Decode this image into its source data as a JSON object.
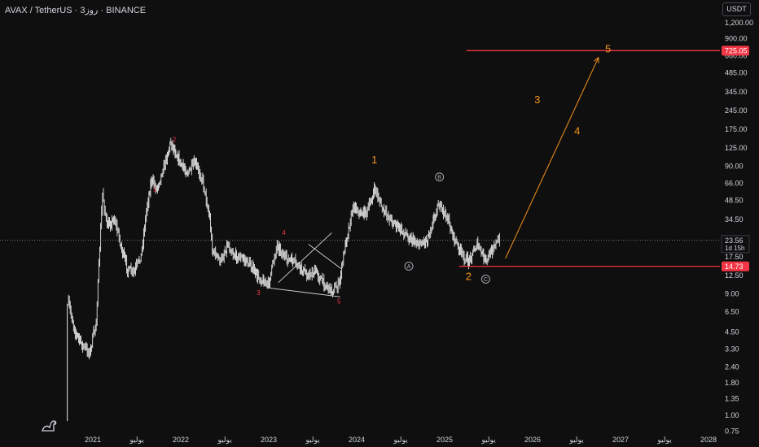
{
  "header": {
    "title": "AVAX / TetherUS · 3روز · BINANCE",
    "currency": "USDT"
  },
  "colors": {
    "background": "#0f0f0f",
    "candles": "#e6e6e6",
    "wave_red": "#f23645",
    "wave_orange": "#f7931a",
    "level_line": "#f23645",
    "label_gray": "#b2b5be"
  },
  "chart_data": {
    "type": "line",
    "scale": "log",
    "x_axis": {
      "labels": [
        "2021",
        "يوليو",
        "2022",
        "يوليو",
        "2023",
        "يوليو",
        "2024",
        "يوليو",
        "2025",
        "يوليو",
        "2026",
        "يوليو",
        "2027",
        "يوليو",
        "2028"
      ]
    },
    "y_axis": {
      "ticks": [
        "1,200.00",
        "900.00",
        "660.00",
        "485.00",
        "345.00",
        "245.00",
        "175.00",
        "125.00",
        "90.00",
        "66.00",
        "48.50",
        "34.50",
        "17.50",
        "12.50",
        "9.00",
        "6.50",
        "4.50",
        "3.30",
        "2.40",
        "1.80",
        "1.35",
        "1.00",
        "0.75"
      ],
      "tick_values": [
        1200,
        900,
        660,
        485,
        345,
        245,
        175,
        125,
        90,
        66,
        48.5,
        34.5,
        17.5,
        12.5,
        9,
        6.5,
        4.5,
        3.3,
        2.4,
        1.8,
        1.35,
        1,
        0.75
      ],
      "ylim": [
        0.75,
        1200
      ]
    },
    "series": [
      {
        "x": [
          "2020-09-22",
          "2020-10-20",
          "2020-11-20",
          "2020-12-20",
          "2021-01-15",
          "2021-02-10",
          "2021-03-01",
          "2021-04-01",
          "2021-05-01",
          "2021-05-25",
          "2021-06-20",
          "2021-07-20",
          "2021-08-15",
          "2021-09-01",
          "2021-09-23",
          "2021-10-15",
          "2021-11-21",
          "2021-12-15",
          "2022-01-05",
          "2022-02-01",
          "2022-03-01",
          "2022-04-02",
          "2022-05-01",
          "2022-05-12",
          "2022-06-15",
          "2022-07-15",
          "2022-08-10",
          "2022-09-15",
          "2022-10-20",
          "2022-11-10",
          "2022-12-30",
          "2023-02-05",
          "2023-03-10",
          "2023-04-15",
          "2023-05-15",
          "2023-06-15",
          "2023-07-15",
          "2023-08-15",
          "2023-09-20",
          "2023-10-20",
          "2023-11-15",
          "2023-12-20",
          "2024-01-15",
          "2024-02-15",
          "2024-03-18",
          "2024-04-20",
          "2024-05-20",
          "2024-06-20",
          "2024-08-05",
          "2024-09-15",
          "2024-10-20",
          "2024-12-05",
          "2025-01-10",
          "2025-02-10",
          "2025-03-15",
          "2025-04-07",
          "2025-05-15",
          "2025-06-22",
          "2025-07-25",
          "2025-08-20"
        ],
        "y": [
          7.5,
          4.5,
          3.5,
          3.1,
          5.5,
          55,
          30,
          35,
          20,
          14,
          13,
          18,
          45,
          70,
          60,
          80,
          140,
          110,
          90,
          80,
          95,
          70,
          35,
          20,
          16,
          22,
          18,
          17,
          15,
          12.5,
          10.5,
          22,
          17,
          16,
          14,
          12.5,
          13.5,
          11,
          9.5,
          10.5,
          22,
          45,
          38,
          40,
          60,
          40,
          35,
          30,
          25,
          22,
          24,
          45,
          36,
          24,
          18,
          16,
          22,
          16,
          22,
          23.56
        ]
      }
    ],
    "price_line": {
      "value": 23.56,
      "label": "23.56",
      "countdown": "1d 15h"
    },
    "levels": [
      {
        "value": 725.05,
        "label": "725.05",
        "x_start": "2025-04-01",
        "x_end": "2028-06-30"
      },
      {
        "value": 14.73,
        "label": "14.73",
        "x_start": "2025-03-01",
        "x_end": "2028-06-30"
      }
    ],
    "projection": {
      "x": [
        "2025-09-10",
        "2026-10-01"
      ],
      "y": [
        17,
        640
      ]
    },
    "triangle": {
      "upper": {
        "x": [
          "2023-02-10",
          "2023-09-20"
        ],
        "y": [
          11,
          27
        ]
      },
      "lower": {
        "x": [
          "2022-12-30",
          "2023-10-25"
        ],
        "y": [
          10,
          8.5
        ]
      },
      "apex_top": {
        "x": "2023-06-15",
        "y": 22
      },
      "apex_bottom": {
        "x": "2023-11-01",
        "y": 14
      }
    },
    "wave_labels_red": [
      {
        "text": "1",
        "x": "2021-09-15",
        "y": 57
      },
      {
        "text": "2",
        "x": "2021-12-05",
        "y": 140
      },
      {
        "text": "3",
        "x": "2022-11-20",
        "y": 8.8
      },
      {
        "text": "4",
        "x": "2023-03-05",
        "y": 26
      },
      {
        "text": "5",
        "x": "2023-10-20",
        "y": 7.5
      }
    ],
    "wave_labels_orange": [
      {
        "text": "1",
        "x": "2024-03-15",
        "y": 95
      },
      {
        "text": "2",
        "x": "2025-04-10",
        "y": 11.5
      },
      {
        "text": "3",
        "x": "2026-01-20",
        "y": 280
      },
      {
        "text": "4",
        "x": "2026-07-05",
        "y": 160
      },
      {
        "text": "5",
        "x": "2026-11-10",
        "y": 700
      }
    ],
    "circle_labels": [
      {
        "text": "A",
        "x": "2024-08-05",
        "y": 14.8
      },
      {
        "text": "B",
        "x": "2024-12-10",
        "y": 74
      },
      {
        "text": "C",
        "x": "2025-06-20",
        "y": 11.7
      }
    ]
  }
}
